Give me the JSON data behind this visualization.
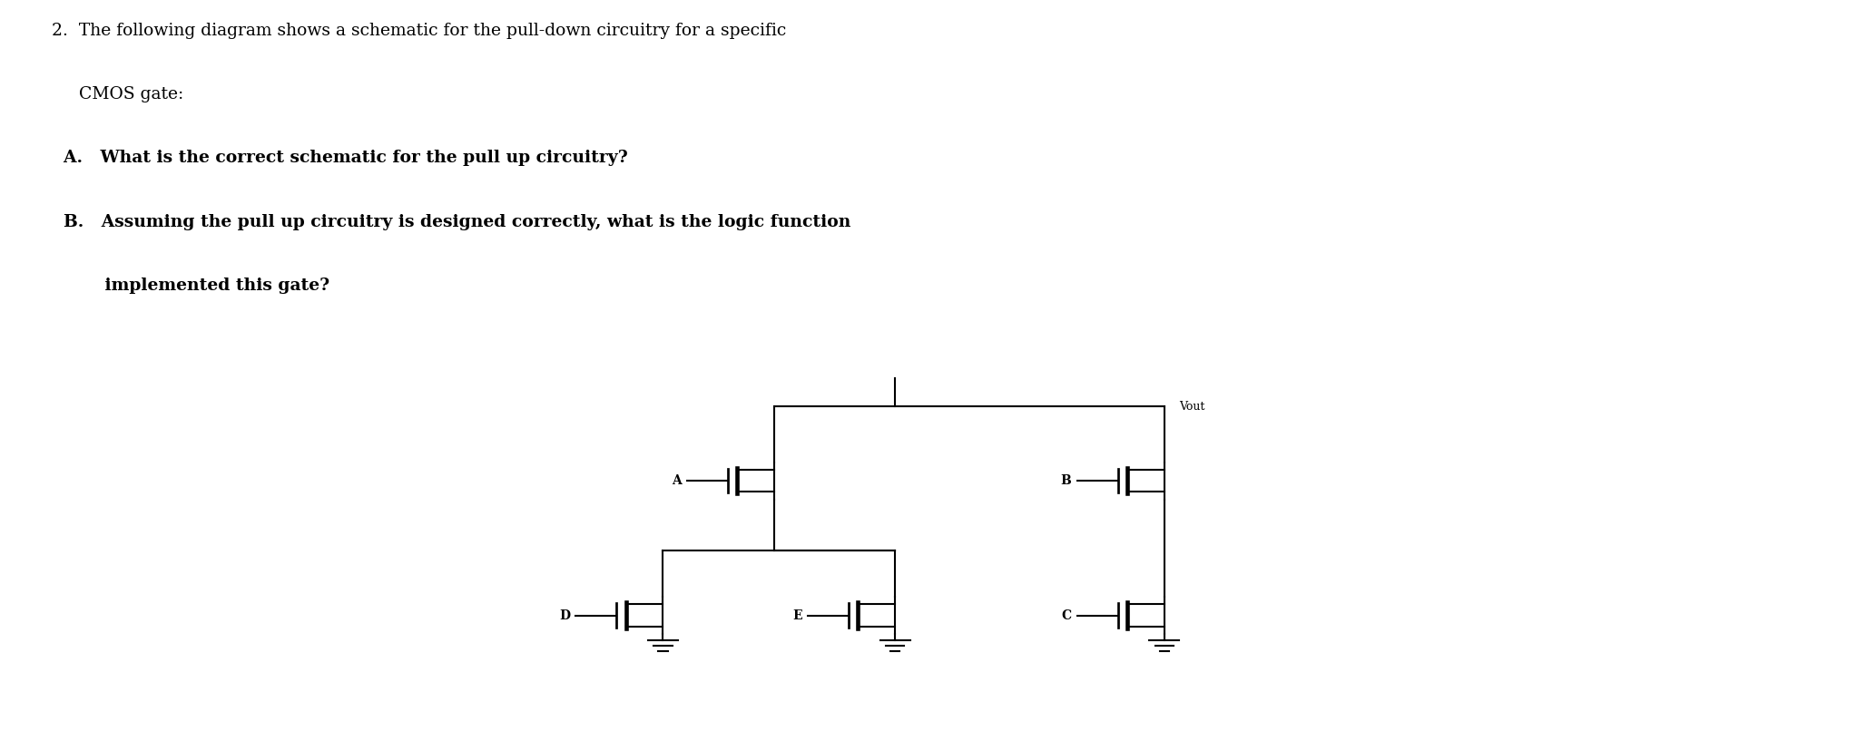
{
  "bg_color": "#ffffff",
  "text_color": "#000000",
  "line_color": "#000000",
  "line1": "2.  The following diagram shows a schematic for the pull-down circuitry for a specific",
  "line2": "     CMOS gate:",
  "line3": "  A.   What is the correct schematic for the pull up circuitry?",
  "line4": "  B.   Assuming the pull up circuitry is designed correctly, what is the logic function",
  "line5": "         implemented this gate?",
  "vout_label": "Vout",
  "labels": [
    "A",
    "B",
    "C",
    "D",
    "E"
  ],
  "fig_width": 20.46,
  "fig_height": 8.27
}
